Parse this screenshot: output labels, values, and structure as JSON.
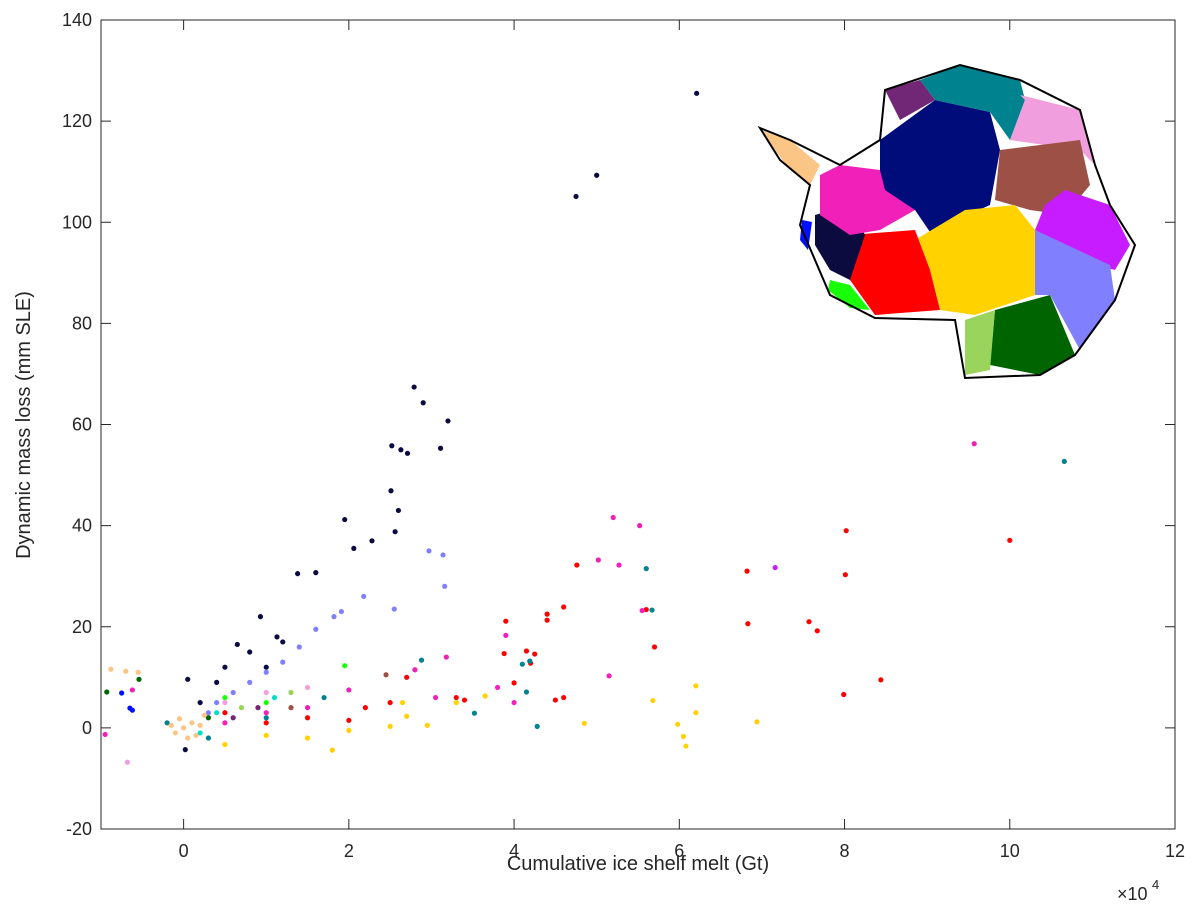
{
  "chart_data": {
    "type": "scatter",
    "xlabel": "Cumulative ice shelf melt (Gt)",
    "ylabel": "Dynamic mass loss (mm SLE)",
    "x_scale_base": "×10",
    "x_scale_exponent": "4",
    "xlim": [
      -1,
      12
    ],
    "ylim": [
      -20,
      140
    ],
    "xticks": [
      0,
      2,
      4,
      6,
      8,
      10,
      12
    ],
    "yticks": [
      -20,
      0,
      20,
      40,
      60,
      80,
      100,
      120,
      140
    ],
    "series": [
      {
        "color": "#0b0b40",
        "x": [
          6.21,
          5.0,
          4.75,
          2.79,
          2.9,
          3.2,
          2.63,
          2.52,
          2.71,
          3.11,
          2.51,
          2.6,
          1.95,
          2.56,
          2.28,
          2.06,
          1.38,
          1.6,
          0.93,
          1.13,
          0.65,
          1.2,
          0.4,
          0.05,
          0.2,
          0.02,
          0.5,
          0.8,
          1.0
        ],
        "values": [
          125.5,
          109.3,
          105.1,
          67.4,
          64.3,
          60.7,
          55,
          55.8,
          54.3,
          55.3,
          46.9,
          43,
          41.2,
          38.8,
          37,
          35.5,
          30.5,
          30.7,
          22,
          18,
          16.5,
          17,
          9,
          9.6,
          5,
          -4.3,
          12,
          15,
          12
        ]
      },
      {
        "color": "#8080ff",
        "x": [
          2.97,
          3.14,
          3.16,
          2.18,
          1.91,
          2.55,
          1.82,
          1.6,
          1.4,
          1.2,
          1.0,
          0.8,
          0.6,
          0.4,
          0.3
        ],
        "values": [
          35,
          34.2,
          28,
          26,
          23,
          23.5,
          22,
          19.5,
          16,
          13,
          11,
          9,
          7,
          5,
          3
        ]
      },
      {
        "color": "#ff0000",
        "x": [
          10.0,
          8.02,
          8.01,
          7.57,
          7.67,
          6.82,
          6.83,
          8.44,
          7.99,
          5.6,
          5.7,
          4.76,
          4.6,
          4.4,
          4.4,
          3.9,
          4.15,
          4.25,
          4.2,
          3.88,
          4.0,
          3.4,
          3.3,
          2.7,
          2.5,
          2.2,
          2.0,
          1.5,
          1.0,
          0.5,
          4.5,
          4.6
        ],
        "values": [
          37.1,
          39,
          30.3,
          21,
          19.2,
          31,
          20.6,
          9.5,
          6.6,
          23.4,
          16,
          32.2,
          23.9,
          22.5,
          21.3,
          21.1,
          15.2,
          14.6,
          12.8,
          14.7,
          8.9,
          5.5,
          6,
          10,
          5,
          4,
          1.5,
          2,
          1,
          3,
          5.5,
          6
        ]
      },
      {
        "color": "#f020b8",
        "x": [
          9.57,
          5.2,
          5.52,
          5.02,
          5.27,
          5.55,
          3.9,
          3.18,
          2.8,
          3.05,
          2.0,
          1.5,
          1.0,
          0.5,
          -0.62,
          -0.95,
          5.15,
          3.8,
          4.0
        ],
        "values": [
          56.2,
          41.6,
          40,
          33.2,
          32.2,
          23.2,
          18.3,
          14,
          11.5,
          6,
          7.5,
          4,
          3,
          1,
          7.5,
          -1.3,
          10.3,
          8,
          5
        ]
      },
      {
        "color": "#c71cff",
        "x": [
          7.16
        ],
        "values": [
          31.7
        ]
      },
      {
        "color": "#00828f",
        "x": [
          10.66,
          5.6,
          5.67,
          4.19,
          4.1,
          4.15,
          3.52,
          4.28,
          2.88,
          1.7,
          1.0,
          0.3,
          -0.2
        ],
        "values": [
          52.7,
          31.5,
          23.3,
          13.2,
          12.6,
          7.1,
          2.9,
          0.3,
          13.4,
          6,
          2,
          -2,
          1
        ]
      },
      {
        "color": "#ffd200",
        "x": [
          6.2,
          6.2,
          5.68,
          6.05,
          6.08,
          5.98,
          6.94,
          4.85,
          3.65,
          3.3,
          2.95,
          2.5,
          2.0,
          1.8,
          1.5,
          1.0,
          0.5,
          2.7,
          2.65
        ],
        "values": [
          8.3,
          3,
          5.4,
          -1.7,
          -3.6,
          0.7,
          1.2,
          0.9,
          6.3,
          5,
          0.5,
          0.3,
          -0.5,
          -4.4,
          -2,
          -1.5,
          -3.3,
          2.3,
          5
        ]
      },
      {
        "color": "#9c5046",
        "x": [
          2.45,
          1.3
        ],
        "values": [
          10.5,
          4
        ]
      },
      {
        "color": "#19ff0a",
        "x": [
          1.95,
          1.0,
          0.5
        ],
        "values": [
          12.3,
          5,
          6
        ]
      },
      {
        "color": "#006400",
        "x": [
          -0.93,
          -0.54,
          0.3
        ],
        "values": [
          7.1,
          9.6,
          2
        ]
      },
      {
        "color": "#0010ff",
        "x": [
          -0.65,
          -0.75,
          -0.62
        ],
        "values": [
          3.9,
          6.9,
          3.5
        ]
      },
      {
        "color": "#fbc586",
        "x": [
          -0.88,
          -0.7,
          -0.55,
          0,
          0.1,
          -0.1,
          0.05,
          0.2,
          -0.15,
          0.15,
          -0.05,
          0.25
        ],
        "values": [
          11.6,
          11.2,
          11,
          0,
          1,
          -1,
          -2,
          0.5,
          0.5,
          -1.5,
          1.8,
          2.5
        ]
      },
      {
        "color": "#f09ede",
        "x": [
          -0.68,
          0.5,
          1.0,
          1.5
        ],
        "values": [
          -6.8,
          5,
          7,
          8
        ]
      },
      {
        "color": "#9bd45c",
        "x": [
          0.7,
          1.3
        ],
        "values": [
          4,
          7
        ]
      },
      {
        "color": "#00e0c8",
        "x": [
          0.4,
          1.1,
          0.2
        ],
        "values": [
          3,
          6,
          -1
        ]
      },
      {
        "color": "#722676",
        "x": [
          0.6,
          0.9
        ],
        "values": [
          2,
          4
        ]
      }
    ]
  }
}
